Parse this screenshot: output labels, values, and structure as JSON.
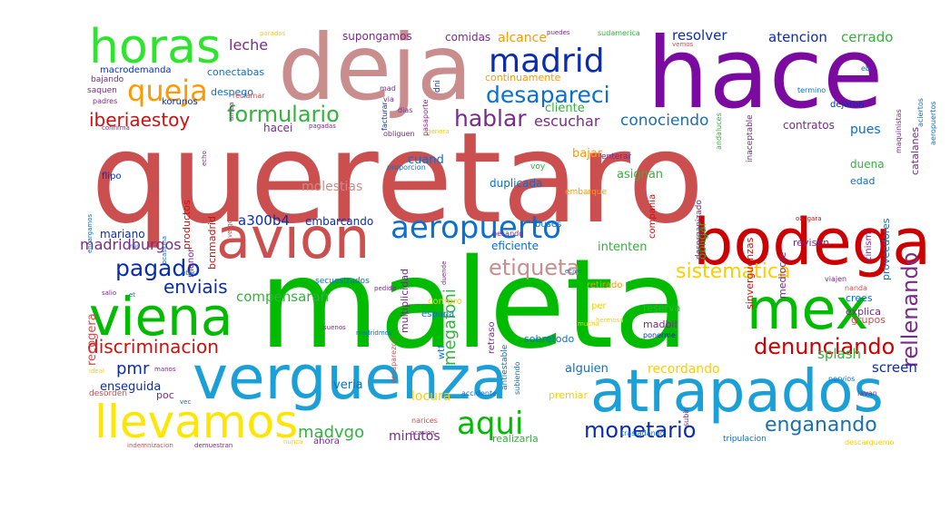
{
  "words": [
    {
      "text": "queretaro",
      "color": "#cc4f4f"
    },
    {
      "text": "maleta",
      "color": "#00bb00"
    },
    {
      "text": "hace",
      "color": "#7a0aa0"
    },
    {
      "text": "deja",
      "color": "#c98d8d"
    },
    {
      "text": "horas",
      "color": "#2ee52e"
    },
    {
      "text": "bodega",
      "color": "#cc0000"
    },
    {
      "text": "avion",
      "color": "#cc4f4f"
    },
    {
      "text": "verguenza",
      "color": "#1aa0d6"
    },
    {
      "text": "atrapados",
      "color": "#1aa0d6"
    },
    {
      "text": "viena",
      "color": "#00bb00"
    },
    {
      "text": "mex",
      "color": "#00bb00"
    },
    {
      "text": "llevamos",
      "color": "#ffe600"
    },
    {
      "text": "madrid",
      "color": "#0a2db0"
    },
    {
      "text": "queja",
      "color": "#ff9900"
    },
    {
      "text": "aeropuerto",
      "color": "#0a6fd0"
    },
    {
      "text": "desapareci",
      "color": "#0a6fd0"
    },
    {
      "text": "formulario",
      "color": "#33b23d"
    },
    {
      "text": "hablar",
      "color": "#7a2a8a"
    },
    {
      "text": "iberiaestoy",
      "color": "#cc1111"
    },
    {
      "text": "pagado",
      "color": "#0a2db0"
    },
    {
      "text": "etiqueta",
      "color": "#c98d8d"
    },
    {
      "text": "rellenando",
      "color": "#7a2a8a"
    },
    {
      "text": "sistematica",
      "color": "#ffcc00"
    },
    {
      "text": "denunciando",
      "color": "#cc0000"
    },
    {
      "text": "monetario",
      "color": "#0a2db0"
    },
    {
      "text": "enganando",
      "color": "#1a6fb0"
    },
    {
      "text": "aqui",
      "color": "#00bb00"
    },
    {
      "text": "madvgo",
      "color": "#33b23d"
    },
    {
      "text": "discriminacion",
      "color": "#cc1111"
    },
    {
      "text": "enviais",
      "color": "#0a2db0"
    },
    {
      "text": "compensaran",
      "color": "#33b23d"
    },
    {
      "text": "megafoni",
      "color": "#33b23d"
    },
    {
      "text": "pmr",
      "color": "#0a2db0"
    },
    {
      "text": "conociendo",
      "color": "#1a6fb0"
    },
    {
      "text": "escuchar",
      "color": "#7a2a8a"
    },
    {
      "text": "leche",
      "color": "#7a2a8a"
    },
    {
      "text": "resolver",
      "color": "#0a2db0"
    },
    {
      "text": "atencion",
      "color": "#0a2db0"
    },
    {
      "text": "cerrado",
      "color": "#33b23d"
    },
    {
      "text": "alcance",
      "color": "#ff9900"
    },
    {
      "text": "comidas",
      "color": "#7a2a8a"
    },
    {
      "text": "supongamos",
      "color": "#7a2a8a"
    },
    {
      "text": "continuamente",
      "color": "#ff9900"
    },
    {
      "text": "cliente",
      "color": "#33b23d"
    },
    {
      "text": "contratos",
      "color": "#7a2a8a"
    },
    {
      "text": "pues",
      "color": "#0a6fd0"
    },
    {
      "text": "hacei",
      "color": "#7a2a8a"
    },
    {
      "text": "madridburgos",
      "color": "#7a2a8a"
    },
    {
      "text": "a300b4",
      "color": "#0a2db0"
    },
    {
      "text": "embarcando",
      "color": "#0a2db0"
    },
    {
      "text": "recogera",
      "color": "#cc4f4f"
    },
    {
      "text": "mariano",
      "color": "#0a2db0"
    },
    {
      "text": "molestias",
      "color": "#c98d8d"
    },
    {
      "text": "duplicada",
      "color": "#0a6fd0"
    },
    {
      "text": "multiplicidad",
      "color": "#7a2a8a"
    },
    {
      "text": "cuand",
      "color": "#0a6fd0"
    },
    {
      "text": "bajar",
      "color": "#ff9900"
    },
    {
      "text": "intenten",
      "color": "#33b23d"
    },
    {
      "text": "asignan",
      "color": "#33b23d"
    },
    {
      "text": "eficiente",
      "color": "#0a6fd0"
    },
    {
      "text": "obligar",
      "color": "#33b23d"
    },
    {
      "text": "duena",
      "color": "#33b23d"
    },
    {
      "text": "edad",
      "color": "#0a6fd0"
    },
    {
      "text": "revisen",
      "color": "#7a2a8a"
    },
    {
      "text": "crees",
      "color": "#0a6fd0"
    },
    {
      "text": "explica",
      "color": "#7a2a8a"
    },
    {
      "text": "grupos",
      "color": "#cc4f4f"
    },
    {
      "text": "splash",
      "color": "#33b23d"
    },
    {
      "text": "screen",
      "color": "#0a2db0"
    },
    {
      "text": "recordando",
      "color": "#ffcc00"
    },
    {
      "text": "alguien",
      "color": "#0a6fd0"
    },
    {
      "text": "enseguida",
      "color": "#0a2db0"
    },
    {
      "text": "veria",
      "color": "#0a6fd0"
    },
    {
      "text": "locura",
      "color": "#ffcc00"
    },
    {
      "text": "minutos",
      "color": "#7a2a8a"
    },
    {
      "text": "realizarla",
      "color": "#33b23d"
    },
    {
      "text": "sobretodo",
      "color": "#0a6fd0"
    },
    {
      "text": "madbil",
      "color": "#7a2a8a"
    },
    {
      "text": "reserva",
      "color": "#33b23d"
    },
    {
      "text": "premiar",
      "color": "#ffcc00"
    },
    {
      "text": "poc",
      "color": "#7a2a8a"
    },
    {
      "text": "ahora",
      "color": "#7a2a8a"
    },
    {
      "text": "despego",
      "color": "#0a6fd0"
    },
    {
      "text": "conectabas",
      "color": "#0a6fd0"
    },
    {
      "text": "macrodemanda",
      "color": "#0a2db0"
    },
    {
      "text": "korunos",
      "color": "#0a2db0"
    },
    {
      "text": "bajando",
      "color": "#7a2a8a"
    },
    {
      "text": "saquen",
      "color": "#7a2a8a"
    },
    {
      "text": "flipo",
      "color": "#0a2db0"
    },
    {
      "text": "productos",
      "color": "#cc1111"
    },
    {
      "text": "bcnmadrid",
      "color": "#cc1111"
    },
    {
      "text": "menor",
      "color": "#7a2a8a"
    },
    {
      "text": "compania",
      "color": "#cc1111"
    },
    {
      "text": "mediocre",
      "color": "#7a2a8a"
    },
    {
      "text": "sinverguenzas",
      "color": "#cc1111"
    },
    {
      "text": "desorganizado",
      "color": "#7a2a8a"
    },
    {
      "text": "cinism",
      "color": "#7a2a8a"
    },
    {
      "text": "proveedores",
      "color": "#0a6fd0"
    },
    {
      "text": "catalanes",
      "color": "#7a2a8a"
    },
    {
      "text": "dejaron",
      "color": "#0a2db0"
    },
    {
      "text": "voy",
      "color": "#33b23d"
    },
    {
      "text": "buses",
      "color": "#0a6fd0"
    },
    {
      "text": "enterar",
      "color": "#7a2a8a"
    },
    {
      "text": "retirado",
      "color": "#ff9900"
    },
    {
      "text": "compro",
      "color": "#ffcc00"
    },
    {
      "text": "espana",
      "color": "#0a6fd0"
    },
    {
      "text": "retraso",
      "color": "#7a2a8a"
    },
    {
      "text": "wtf",
      "color": "#0a6fd0"
    },
    {
      "text": "per",
      "color": "#ffcc00"
    },
    {
      "text": "secuestrados",
      "color": "#0a6fd0"
    },
    {
      "text": "ocasion",
      "color": "#7a2a8a"
    },
    {
      "text": "trasladando",
      "color": "#0a6fd0"
    },
    {
      "text": "narices",
      "color": "#cc4f4f"
    },
    {
      "text": "tripulacion",
      "color": "#0a6fd0"
    },
    {
      "text": "descarguemo",
      "color": "#ffcc00"
    },
    {
      "text": "nanda",
      "color": "#cc4f4f"
    },
    {
      "text": "viajen",
      "color": "#7a2a8a"
    },
    {
      "text": "hermosa",
      "color": "#ffcc00"
    },
    {
      "text": "lavan",
      "color": "#7a2a8a"
    },
    {
      "text": "desorden",
      "color": "#cc4f4f"
    },
    {
      "text": "indemnizacion",
      "color": "#cc4f4f"
    },
    {
      "text": "demuestran",
      "color": "#7a2a8a"
    },
    {
      "text": "nunca",
      "color": "#ffcc00"
    },
    {
      "text": "accidente",
      "color": "#0a6fd0"
    },
    {
      "text": "subir",
      "color": "#7a2a8a"
    },
    {
      "text": "ponerme",
      "color": "#0a2db0"
    },
    {
      "text": "subiendo",
      "color": "#0a6fd0"
    },
    {
      "text": "antiestable",
      "color": "#0a6fd0"
    },
    {
      "text": "madridmos",
      "color": "#0a6fd0"
    },
    {
      "text": "desaparezco",
      "color": "#cc4f4f"
    },
    {
      "text": "pedido",
      "color": "#7a2a8a"
    },
    {
      "text": "besando",
      "color": "#7a2a8a"
    },
    {
      "text": "embarque",
      "color": "#ff9900"
    },
    {
      "text": "proporcion",
      "color": "#0a6fd0"
    },
    {
      "text": "obligara",
      "color": "#cc1111"
    },
    {
      "text": "inaceptable",
      "color": "#7a2a8a"
    },
    {
      "text": "andaluces",
      "color": "#33b23d"
    },
    {
      "text": "maquinistas",
      "color": "#7a2a8a"
    },
    {
      "text": "termino",
      "color": "#0a6fd0"
    },
    {
      "text": "vemos",
      "color": "#cc4f4f"
    },
    {
      "text": "parados",
      "color": "#ffcc00"
    },
    {
      "text": "facturar",
      "color": "#0a2db0"
    },
    {
      "text": "sudamerica",
      "color": "#33b23d"
    },
    {
      "text": "puedes",
      "color": "#7a2a8a"
    },
    {
      "text": "pasaporte",
      "color": "#7a2a8a"
    },
    {
      "text": "dni",
      "color": "#0a2db0"
    },
    {
      "text": "dias",
      "color": "#7a2a8a"
    },
    {
      "text": "mad",
      "color": "#7a2a8a"
    },
    {
      "text": "via",
      "color": "#7a2a8a"
    },
    {
      "text": "reclamar",
      "color": "#cc4f4f"
    },
    {
      "text": "padres",
      "color": "#7a2a8a"
    },
    {
      "text": "confirma",
      "color": "#7a2a8a"
    },
    {
      "text": "pagadas",
      "color": "#7a2a8a"
    },
    {
      "text": "obliguen",
      "color": "#7a2a8a"
    },
    {
      "text": "genera",
      "color": "#ffcc00"
    },
    {
      "text": "eb",
      "color": "#0a6fd0"
    },
    {
      "text": "aeropuertos",
      "color": "#0a6fd0"
    },
    {
      "text": "aciertos",
      "color": "#0a6fd0"
    },
    {
      "text": "salio",
      "color": "#7a2a8a"
    },
    {
      "text": "ideal",
      "color": "#ffcc00"
    },
    {
      "text": "vec",
      "color": "#0a6fd0"
    },
    {
      "text": "duende",
      "color": "#7a2a8a"
    },
    {
      "text": "manos",
      "color": "#7a2a8a"
    },
    {
      "text": "ocasiona",
      "color": "#0a6fd0"
    },
    {
      "text": "encargamos",
      "color": "#0a6fd0"
    },
    {
      "text": "mes",
      "color": "#0a6fd0"
    },
    {
      "text": "ecjve",
      "color": "#0a6fd0"
    },
    {
      "text": "mucha",
      "color": "#ffcc00"
    },
    {
      "text": "nervios",
      "color": "#0a6fd0"
    },
    {
      "text": "suenos",
      "color": "#7a2a8a"
    },
    {
      "text": "arriba",
      "color": "#7a2a8a"
    },
    {
      "text": "ptos",
      "color": "#0a6fd0"
    },
    {
      "text": "et",
      "color": "#0a6fd0"
    },
    {
      "text": "vergonzoso",
      "color": "#cc4f4f"
    },
    {
      "text": "echo",
      "color": "#7a2a8a"
    }
  ]
}
